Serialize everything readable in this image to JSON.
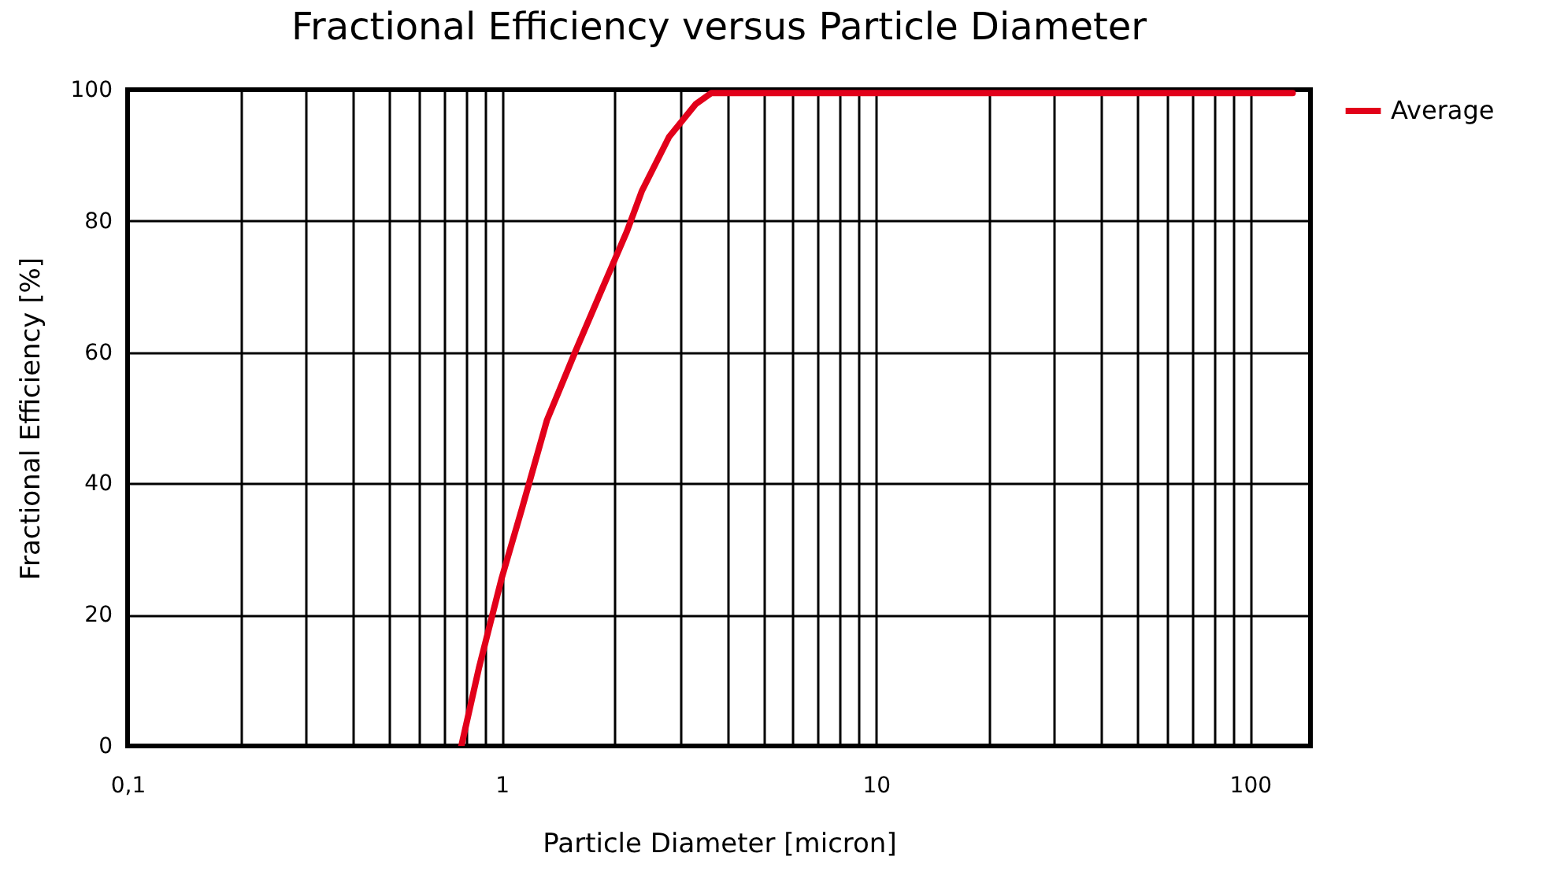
{
  "chart_data": {
    "type": "line",
    "title": "Fractional Efficiency versus Particle Diameter",
    "xlabel": "Particle Diameter [micron]",
    "ylabel": "Fractional Efficiency [%]",
    "log": "x",
    "grid": true,
    "legend": "top right",
    "marker": "none",
    "line_style": "solid",
    "xlim": [
      0.1,
      145
    ],
    "ylim": [
      0,
      100
    ],
    "xticks": [
      {
        "value": 0.1,
        "label": "0,1"
      },
      {
        "value": 0.2,
        "label": null
      },
      {
        "value": 0.3,
        "label": null
      },
      {
        "value": 0.4,
        "label": null
      },
      {
        "value": 0.5,
        "label": null
      },
      {
        "value": 0.6,
        "label": null
      },
      {
        "value": 0.7,
        "label": null
      },
      {
        "value": 0.8,
        "label": null
      },
      {
        "value": 0.9,
        "label": null
      },
      1,
      {
        "value": 2,
        "label": null
      },
      {
        "value": 3,
        "label": null
      },
      {
        "value": 4,
        "label": null
      },
      {
        "value": 5,
        "label": null
      },
      {
        "value": 6,
        "label": null
      },
      {
        "value": 7,
        "label": null
      },
      {
        "value": 8,
        "label": null
      },
      {
        "value": 9,
        "label": null
      },
      10,
      {
        "value": 20,
        "label": null
      },
      {
        "value": 30,
        "label": null
      },
      {
        "value": 40,
        "label": null
      },
      {
        "value": 50,
        "label": null
      },
      {
        "value": 60,
        "label": null
      },
      {
        "value": 70,
        "label": null
      },
      {
        "value": 80,
        "label": null
      },
      {
        "value": 90,
        "label": null
      },
      100
    ],
    "yticks": [
      0,
      20,
      40,
      60,
      80,
      100
    ],
    "series": [
      {
        "name": "Average",
        "color": "#e2001a",
        "x": [
          0.78,
          0.87,
          1.0,
          1.13,
          1.32,
          1.57,
          1.85,
          2.16,
          2.37,
          2.8,
          3.3,
          3.63,
          130
        ],
        "values": [
          0,
          12,
          25.6,
          36,
          49.6,
          60,
          69.5,
          78.4,
          84.6,
          92.8,
          97.8,
          99.5,
          99.5
        ]
      }
    ]
  }
}
